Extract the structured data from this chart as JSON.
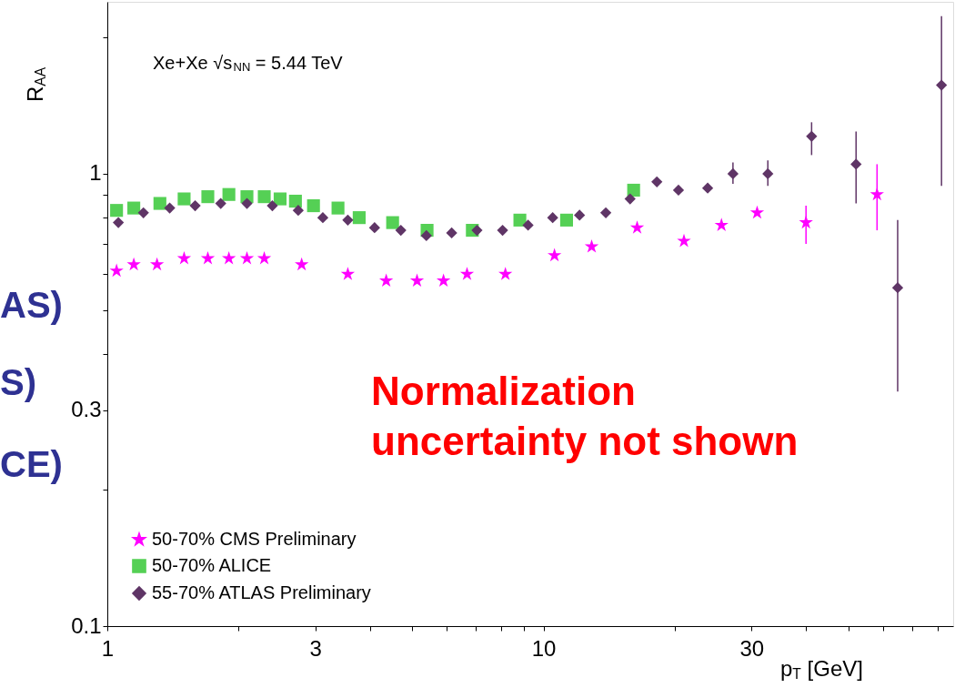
{
  "chart_data": {
    "type": "scatter",
    "xlabel": "p$_{T}$ [GeV]",
    "ylabel": "R$_{AA}$",
    "log": "xy",
    "grid": false,
    "legend": "bottom left",
    "xlim": [
      1,
      87
    ],
    "ylim": [
      0.1,
      2.4
    ],
    "xticks": [
      1,
      {
        "value": 2,
        "label": null
      },
      3,
      {
        "value": 4,
        "label": null
      },
      {
        "value": 5,
        "label": null
      },
      {
        "value": 6,
        "label": null
      },
      {
        "value": 7,
        "label": null
      },
      {
        "value": 8,
        "label": null
      },
      {
        "value": 9,
        "label": null
      },
      10,
      {
        "value": 20,
        "label": null
      },
      30,
      {
        "value": 40,
        "label": null
      },
      {
        "value": 50,
        "label": null
      },
      {
        "value": 60,
        "label": null
      },
      {
        "value": 70,
        "label": null
      },
      {
        "value": 80,
        "label": null
      }
    ],
    "yticks": [
      0.1,
      {
        "value": 0.2,
        "label": null
      },
      0.3,
      {
        "value": 0.4,
        "label": null
      },
      {
        "value": 0.5,
        "label": null
      },
      {
        "value": 0.6,
        "label": null
      },
      {
        "value": 0.7,
        "label": null
      },
      {
        "value": 0.8,
        "label": null
      },
      {
        "value": 0.9,
        "label": null
      },
      1,
      {
        "value": 2,
        "label": null
      }
    ],
    "series": [
      {
        "name": "50-70% CMS Preliminary",
        "color": "#ff00ff",
        "marker": "star",
        "x": [
          1.05,
          1.15,
          1.3,
          1.5,
          1.7,
          1.9,
          2.09,
          2.29,
          2.79,
          3.56,
          4.36,
          5.13,
          5.9,
          6.68,
          8.18,
          10.6,
          12.9,
          16.4,
          21.0,
          25.6,
          30.9,
          40.0,
          58.2
        ],
        "values": [
          0.61,
          0.63,
          0.63,
          0.65,
          0.65,
          0.65,
          0.65,
          0.65,
          0.63,
          0.6,
          0.58,
          0.58,
          0.58,
          0.6,
          0.6,
          0.66,
          0.69,
          0.76,
          0.71,
          0.77,
          0.82,
          0.78,
          0.9
        ],
        "errors": [
          null,
          null,
          null,
          null,
          null,
          null,
          null,
          null,
          null,
          null,
          null,
          null,
          null,
          null,
          null,
          null,
          null,
          null,
          null,
          null,
          null,
          [
            0.7,
            0.85
          ],
          [
            0.75,
            1.05
          ]
        ]
      },
      {
        "name": "50-70% ALICE",
        "color": "#55d055",
        "marker": "square",
        "x": [
          1.05,
          1.15,
          1.32,
          1.5,
          1.7,
          1.9,
          2.09,
          2.29,
          2.49,
          2.7,
          2.97,
          3.38,
          3.78,
          4.51,
          5.41,
          6.87,
          8.83,
          11.3,
          16.1
        ],
        "values": [
          0.83,
          0.84,
          0.86,
          0.88,
          0.89,
          0.9,
          0.89,
          0.89,
          0.88,
          0.87,
          0.85,
          0.84,
          0.8,
          0.78,
          0.75,
          0.75,
          0.79,
          0.79,
          0.92
        ]
      },
      {
        "name": "55-70% ATLAS Preliminary",
        "color": "#5f3566",
        "marker": "diamond",
        "x": [
          1.06,
          1.21,
          1.39,
          1.59,
          1.82,
          2.09,
          2.39,
          2.74,
          3.12,
          3.56,
          4.1,
          4.71,
          5.39,
          6.16,
          7.04,
          8.06,
          9.22,
          10.5,
          12.1,
          13.9,
          15.8,
          18.2,
          20.4,
          23.8,
          27.2,
          32.7,
          41.2,
          52.1,
          64.9,
          81.8
        ],
        "values": [
          0.78,
          0.82,
          0.84,
          0.85,
          0.86,
          0.86,
          0.85,
          0.83,
          0.8,
          0.79,
          0.76,
          0.75,
          0.73,
          0.74,
          0.75,
          0.75,
          0.77,
          0.8,
          0.81,
          0.82,
          0.88,
          0.96,
          0.92,
          0.93,
          1.0,
          1.0,
          1.21,
          1.05,
          0.56,
          1.57
        ],
        "errors": [
          null,
          null,
          null,
          null,
          null,
          null,
          null,
          null,
          null,
          null,
          null,
          null,
          null,
          null,
          null,
          null,
          null,
          null,
          null,
          null,
          null,
          null,
          null,
          null,
          [
            0.95,
            1.06
          ],
          [
            0.94,
            1.07
          ],
          [
            1.1,
            1.3
          ],
          [
            0.86,
            1.24
          ],
          [
            0.33,
            0.79
          ],
          [
            0.94,
            2.23
          ]
        ]
      }
    ],
    "annotations": [
      "Xe+Xe  √s$_{NN}$ = 5.44 TeV",
      "Normalization\nuncertainty not shown",
      "AS)",
      "S)",
      "CE)"
    ]
  }
}
